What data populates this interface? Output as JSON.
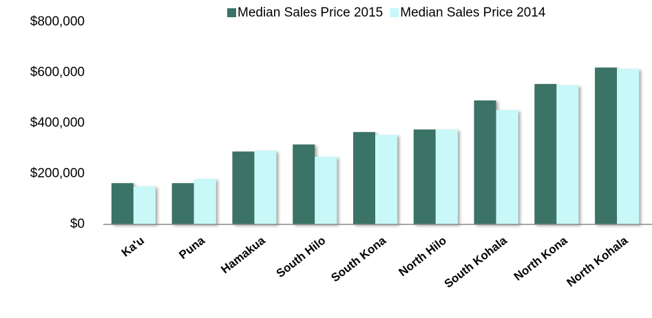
{
  "chart_data": {
    "type": "bar",
    "categories": [
      "Ka'u",
      "Puna",
      "Hamakua",
      "South Hilo",
      "South Kona",
      "North Hilo",
      "South Kohala",
      "North Kona",
      "North Kohala"
    ],
    "series": [
      {
        "name": "Median Sales Price 2015",
        "color": "#3b7366",
        "values": [
          163000,
          163000,
          288000,
          316000,
          365000,
          375000,
          490000,
          555000,
          620000
        ]
      },
      {
        "name": "Median Sales Price 2014",
        "color": "#c8f8f8",
        "values": [
          150000,
          180000,
          291000,
          267000,
          354000,
          375000,
          452000,
          550000,
          615000
        ]
      }
    ],
    "ylim": [
      0,
      800000
    ],
    "yticks": [
      {
        "value": 0,
        "label": "$0"
      },
      {
        "value": 200000,
        "label": "$200,000"
      },
      {
        "value": 400000,
        "label": "$400,000"
      },
      {
        "value": 600000,
        "label": "$600,000"
      },
      {
        "value": 800000,
        "label": "$800,000"
      }
    ],
    "legend": "top"
  }
}
